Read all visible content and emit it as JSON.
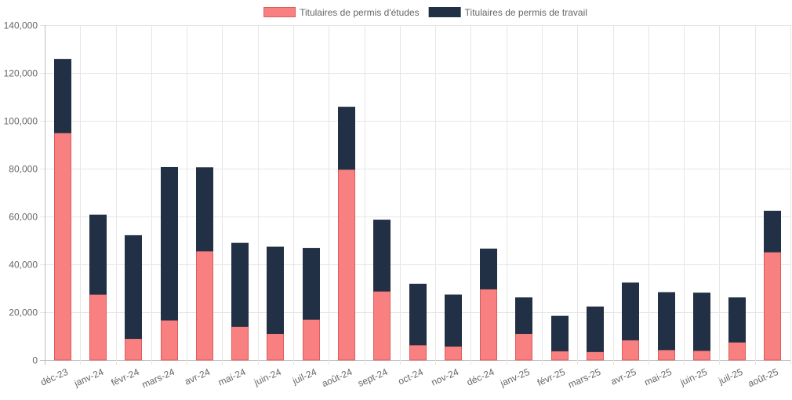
{
  "chart_data": {
    "type": "bar",
    "stacked": true,
    "title": "",
    "xlabel": "",
    "ylabel": "",
    "ylim": [
      0,
      140000
    ],
    "y_ticks": [
      0,
      20000,
      40000,
      60000,
      80000,
      100000,
      120000,
      140000
    ],
    "y_tick_labels": [
      "0",
      "20,000",
      "40,000",
      "60,000",
      "80,000",
      "100,000",
      "120,000",
      "140,000"
    ],
    "grid": true,
    "legend_position": "top-center",
    "categories": [
      "déc-23",
      "janv-24",
      "févr-24",
      "mars-24",
      "avr-24",
      "mai-24",
      "juin-24",
      "juil-24",
      "août-24",
      "sept-24",
      "oct-24",
      "nov-24",
      "déc-24",
      "janv-25",
      "févr-25",
      "mars-25",
      "avr-25",
      "mai-25",
      "juin-25",
      "juil-25",
      "août-25"
    ],
    "series": [
      {
        "name": "Titulaires de permis d'études",
        "color": "#F88080",
        "border_color": "#E05A5A",
        "values": [
          95000,
          27500,
          9000,
          16700,
          45600,
          14000,
          11000,
          17000,
          79700,
          28800,
          6300,
          5800,
          29700,
          11000,
          3800,
          3500,
          8400,
          4300,
          4000,
          7500,
          45200
        ]
      },
      {
        "name": "Titulaires de permis de travail",
        "color": "#213045",
        "border_color": "#213045",
        "values": [
          30700,
          33100,
          43000,
          63800,
          34800,
          34800,
          36200,
          29700,
          26000,
          29700,
          25400,
          21400,
          16700,
          15000,
          14500,
          18700,
          23800,
          23900,
          24000,
          18500,
          17000
        ]
      }
    ]
  }
}
